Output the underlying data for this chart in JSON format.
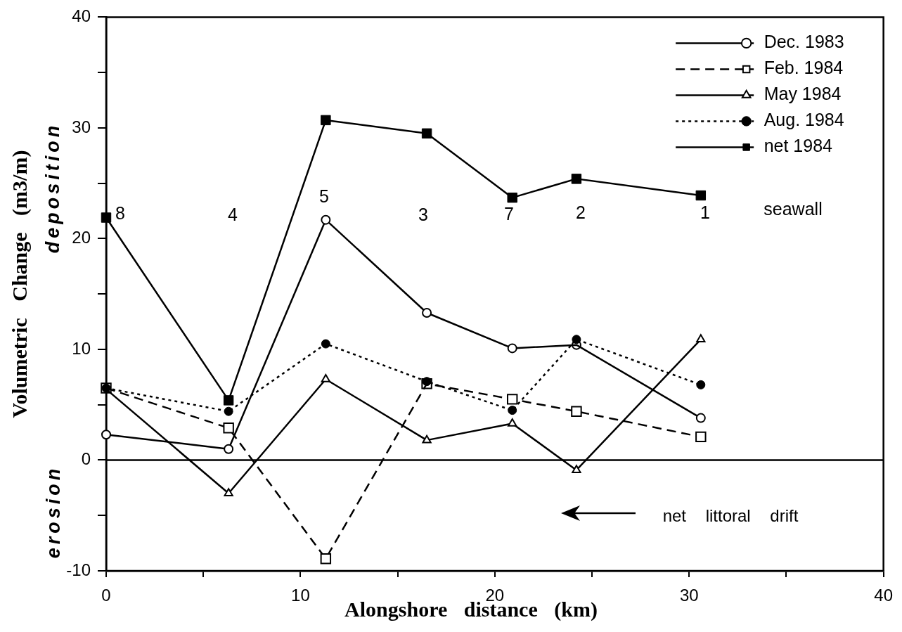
{
  "chart_data": {
    "type": "line",
    "xlabel": "Alongshore distance (km)",
    "ylabel": "Volumetric Change (m3/m)",
    "xlim": [
      0,
      40
    ],
    "xticks": [
      0,
      {
        "value": 5,
        "label": null
      },
      10,
      {
        "value": 15,
        "label": null
      },
      20,
      {
        "value": 25,
        "label": null
      },
      30,
      {
        "value": 35,
        "label": null
      },
      40
    ],
    "ylim": [
      -10,
      40
    ],
    "yticks": [
      -10,
      {
        "value": -5,
        "label": null
      },
      0,
      {
        "value": 5,
        "label": null
      },
      10,
      {
        "value": 15,
        "label": null
      },
      20,
      {
        "value": 25,
        "label": null
      },
      30,
      {
        "value": 35,
        "label": null
      },
      40
    ],
    "grid": false,
    "legend": "top right",
    "x": [
      0,
      6.3,
      11.3,
      16.5,
      20.9,
      24.2,
      30.6
    ],
    "series": [
      {
        "name": "Dec. 1983",
        "color": "#000000",
        "marker": "circle",
        "line_style": "solid",
        "values": [
          2.3,
          1.0,
          21.7,
          13.3,
          10.1,
          10.4,
          3.8
        ]
      },
      {
        "name": "Feb. 1984",
        "color": "#000000",
        "marker": "square",
        "line_style": "dashed",
        "values": [
          6.5,
          2.9,
          -8.9,
          6.9,
          5.5,
          4.4,
          2.1
        ]
      },
      {
        "name": "May 1984",
        "color": "#000000",
        "marker": "triangle",
        "line_style": "solid",
        "values": [
          6.4,
          -3.0,
          7.3,
          1.8,
          3.3,
          -0.9,
          10.9
        ]
      },
      {
        "name": "Aug. 1984",
        "color": "#000000",
        "marker": "circle",
        "line_style": "dotted",
        "values": [
          6.5,
          4.4,
          10.5,
          7.1,
          4.5,
          10.9,
          6.8
        ]
      },
      {
        "name": "net 1984",
        "color": "#000000",
        "marker": "square",
        "line_style": "solid",
        "values": [
          21.9,
          5.4,
          30.7,
          29.5,
          23.7,
          25.4,
          23.9
        ]
      }
    ],
    "ref_lines": [
      {
        "axis": "y",
        "value": 0,
        "color": "#000000"
      }
    ],
    "annotations": [
      "8",
      "4",
      "5",
      "3",
      "7",
      "2",
      "1",
      "seawall",
      "deposition",
      "erosion",
      "net littoral drift"
    ]
  }
}
